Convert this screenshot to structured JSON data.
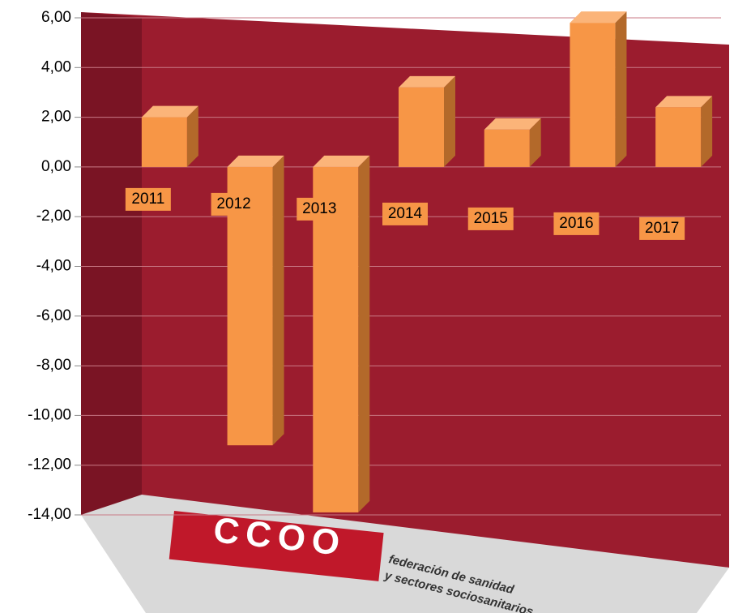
{
  "chart_data": {
    "type": "bar3d",
    "categories": [
      "2011",
      "2012",
      "2013",
      "2014",
      "2015",
      "2016",
      "2017"
    ],
    "values": [
      2.0,
      -11.2,
      -13.9,
      3.2,
      1.5,
      5.8,
      2.4
    ],
    "color": "#f79646",
    "ylim": [
      -14,
      6
    ],
    "yticks": [
      {
        "value": -14,
        "label": "-14,00"
      },
      {
        "value": -12,
        "label": "-12,00"
      },
      {
        "value": -10,
        "label": "-10,00"
      },
      {
        "value": -8,
        "label": "-8,00"
      },
      {
        "value": -6,
        "label": "-6,00"
      },
      {
        "value": -4,
        "label": "-4,00"
      },
      {
        "value": -2,
        "label": "-2,00"
      },
      {
        "value": 0,
        "label": "0,00"
      },
      {
        "value": 2,
        "label": "2,00"
      },
      {
        "value": 4,
        "label": "4,00"
      },
      {
        "value": 6,
        "label": "6,00"
      }
    ],
    "grid": true,
    "logo_text": "CCOO",
    "logo_caption": [
      "federación de sanidad",
      "y sectores sociosanitarios"
    ]
  }
}
